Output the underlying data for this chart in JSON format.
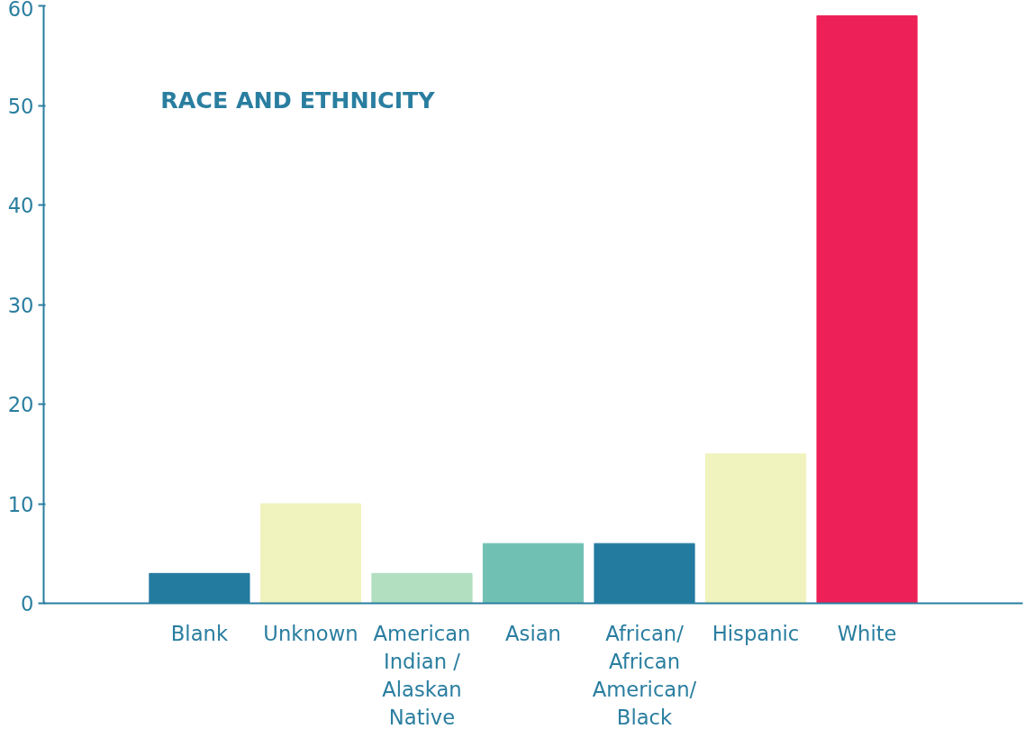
{
  "chart_data": {
    "type": "bar",
    "title": "RACE AND ETHNICITY",
    "categories": [
      "Blank",
      "Unknown",
      "American Indian / Alaskan Native",
      "Asian",
      "African/ African American/ Black",
      "Hispanic",
      "White"
    ],
    "values": [
      3,
      10,
      3,
      6,
      6,
      15,
      59
    ],
    "colors": [
      "#247ba0",
      "#f0f3bd",
      "#b2dfc0",
      "#70c1b3",
      "#247ba0",
      "#f0f3bd",
      "#ed2057"
    ],
    "ylim": [
      0,
      60
    ],
    "yticks": [
      0,
      10,
      20,
      30,
      40,
      50,
      60
    ],
    "grid": false
  }
}
